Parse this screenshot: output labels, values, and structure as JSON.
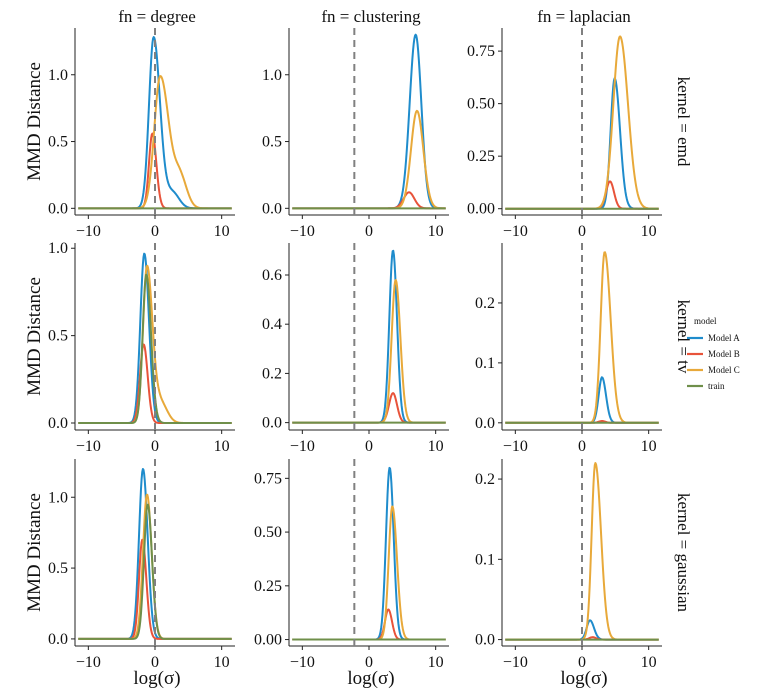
{
  "chart_data": {
    "type": "line",
    "facet_columns": [
      "fn = degree",
      "fn = clustering",
      "fn = laplacian"
    ],
    "facet_rows": [
      "kernel = emd",
      "kernel = tv",
      "kernel = gaussian"
    ],
    "xlabel": "log(σ)",
    "ylabel": "MMD Distance",
    "xlim": [
      -12,
      12
    ],
    "xticks": [
      -10,
      0,
      10
    ],
    "xtick_labels": [
      "−10",
      "0",
      "10"
    ],
    "legend": {
      "title": "model",
      "position": "right",
      "entries": [
        {
          "name": "Model A",
          "color": "#1f8ccc"
        },
        {
          "name": "Model B",
          "color": "#e8533a"
        },
        {
          "name": "Model C",
          "color": "#e8a93a"
        },
        {
          "name": "train",
          "color": "#6f8f4a"
        }
      ]
    },
    "panels": [
      {
        "row": 0,
        "col": 0,
        "vline": 0,
        "ylim": [
          -0.05,
          1.35
        ],
        "yticks": [
          "0.0",
          "0.5",
          "1.0"
        ],
        "ytick_values": [
          0,
          0.5,
          1.0
        ],
        "series": [
          {
            "name": "Model A",
            "peaks": [
              {
                "center": -0.2,
                "height": 1.28,
                "wl": 0.7,
                "wr": 0.95
              },
              {
                "center": 2.6,
                "height": 0.12,
                "wl": 1.0,
                "wr": 1.0
              }
            ]
          },
          {
            "name": "Model B",
            "peaks": [
              {
                "center": -0.4,
                "height": 0.56,
                "wl": 0.5,
                "wr": 0.6
              }
            ]
          },
          {
            "name": "Model C",
            "peaks": [
              {
                "center": 0.8,
                "height": 0.99,
                "wl": 0.9,
                "wr": 1.3
              },
              {
                "center": 3.8,
                "height": 0.22,
                "wl": 0.9,
                "wr": 1.0
              }
            ]
          },
          {
            "name": "train",
            "peaks": [
              {
                "center": 0,
                "height": 0.0,
                "wl": 1,
                "wr": 1
              }
            ]
          }
        ]
      },
      {
        "row": 0,
        "col": 1,
        "vline": -2.2,
        "ylim": [
          -0.05,
          1.35
        ],
        "yticks": [
          "0.0",
          "0.5",
          "1.0"
        ],
        "ytick_values": [
          0,
          0.5,
          1.0
        ],
        "series": [
          {
            "name": "Model A",
            "peaks": [
              {
                "center": 7.0,
                "height": 1.3,
                "wl": 0.9,
                "wr": 0.85
              }
            ]
          },
          {
            "name": "Model B",
            "peaks": [
              {
                "center": 6.0,
                "height": 0.12,
                "wl": 0.8,
                "wr": 0.8
              }
            ]
          },
          {
            "name": "Model C",
            "peaks": [
              {
                "center": 7.2,
                "height": 0.73,
                "wl": 0.9,
                "wr": 0.95
              }
            ]
          },
          {
            "name": "train",
            "peaks": [
              {
                "center": 0,
                "height": 0.0,
                "wl": 1,
                "wr": 1
              }
            ]
          }
        ]
      },
      {
        "row": 0,
        "col": 2,
        "vline": 0,
        "ylim": [
          -0.03,
          0.86
        ],
        "yticks": [
          "0.00",
          "0.25",
          "0.50",
          "0.75"
        ],
        "ytick_values": [
          0,
          0.25,
          0.5,
          0.75
        ],
        "series": [
          {
            "name": "Model A",
            "peaks": [
              {
                "center": 4.9,
                "height": 0.62,
                "wl": 0.6,
                "wr": 0.8
              }
            ]
          },
          {
            "name": "Model B",
            "peaks": [
              {
                "center": 4.2,
                "height": 0.13,
                "wl": 0.6,
                "wr": 0.6
              }
            ]
          },
          {
            "name": "Model C",
            "peaks": [
              {
                "center": 5.7,
                "height": 0.82,
                "wl": 1.0,
                "wr": 1.2
              }
            ]
          },
          {
            "name": "train",
            "peaks": [
              {
                "center": 0,
                "height": 0.0,
                "wl": 1,
                "wr": 1
              }
            ]
          }
        ]
      },
      {
        "row": 1,
        "col": 0,
        "vline": 0,
        "ylim": [
          -0.04,
          1.03
        ],
        "yticks": [
          "0.0",
          "0.5",
          "1.0"
        ],
        "ytick_values": [
          0,
          0.5,
          1.0
        ],
        "series": [
          {
            "name": "Model A",
            "peaks": [
              {
                "center": -1.6,
                "height": 0.97,
                "wl": 0.6,
                "wr": 0.7
              }
            ]
          },
          {
            "name": "Model B",
            "peaks": [
              {
                "center": -1.7,
                "height": 0.45,
                "wl": 0.55,
                "wr": 0.6
              }
            ]
          },
          {
            "name": "Model C",
            "peaks": [
              {
                "center": -1.2,
                "height": 0.89,
                "wl": 0.6,
                "wr": 0.8
              },
              {
                "center": 0.8,
                "height": 0.12,
                "wl": 0.9,
                "wr": 1.0
              }
            ]
          },
          {
            "name": "train",
            "peaks": [
              {
                "center": -1.3,
                "height": 0.85,
                "wl": 0.55,
                "wr": 0.7
              }
            ]
          }
        ]
      },
      {
        "row": 1,
        "col": 1,
        "vline": -2.2,
        "ylim": [
          -0.03,
          0.73
        ],
        "yticks": [
          "0.0",
          "0.2",
          "0.4",
          "0.6"
        ],
        "ytick_values": [
          0,
          0.2,
          0.4,
          0.6
        ],
        "series": [
          {
            "name": "Model A",
            "peaks": [
              {
                "center": 3.6,
                "height": 0.7,
                "wl": 0.55,
                "wr": 0.6
              }
            ]
          },
          {
            "name": "Model B",
            "peaks": [
              {
                "center": 3.6,
                "height": 0.12,
                "wl": 0.6,
                "wr": 0.6
              }
            ]
          },
          {
            "name": "Model C",
            "peaks": [
              {
                "center": 4.0,
                "height": 0.58,
                "wl": 0.6,
                "wr": 0.7
              }
            ]
          },
          {
            "name": "train",
            "peaks": [
              {
                "center": 0,
                "height": 0.0,
                "wl": 1,
                "wr": 1
              }
            ]
          }
        ]
      },
      {
        "row": 1,
        "col": 2,
        "vline": 0,
        "ylim": [
          -0.012,
          0.3
        ],
        "yticks": [
          "0.0",
          "0.1",
          "0.2"
        ],
        "ytick_values": [
          0,
          0.1,
          0.2
        ],
        "series": [
          {
            "name": "Model A",
            "peaks": [
              {
                "center": 3.0,
                "height": 0.076,
                "wl": 0.5,
                "wr": 0.6
              }
            ]
          },
          {
            "name": "Model B",
            "peaks": [
              {
                "center": 3.0,
                "height": 0.003,
                "wl": 0.5,
                "wr": 0.5
              }
            ]
          },
          {
            "name": "Model C",
            "peaks": [
              {
                "center": 3.4,
                "height": 0.285,
                "wl": 0.6,
                "wr": 0.9
              }
            ]
          },
          {
            "name": "train",
            "peaks": [
              {
                "center": 0,
                "height": 0.0,
                "wl": 1,
                "wr": 1
              }
            ]
          }
        ]
      },
      {
        "row": 2,
        "col": 0,
        "vline": 0,
        "ylim": [
          -0.05,
          1.27
        ],
        "yticks": [
          "0.0",
          "0.5",
          "1.0"
        ],
        "ytick_values": [
          0,
          0.5,
          1.0
        ],
        "series": [
          {
            "name": "Model A",
            "peaks": [
              {
                "center": -1.8,
                "height": 1.2,
                "wl": 0.6,
                "wr": 0.7
              }
            ]
          },
          {
            "name": "Model B",
            "peaks": [
              {
                "center": -1.9,
                "height": 0.7,
                "wl": 0.5,
                "wr": 0.6
              }
            ]
          },
          {
            "name": "Model C",
            "peaks": [
              {
                "center": -1.2,
                "height": 1.02,
                "wl": 0.6,
                "wr": 0.7
              }
            ]
          },
          {
            "name": "train",
            "peaks": [
              {
                "center": -1.1,
                "height": 0.95,
                "wl": 0.55,
                "wr": 0.65
              }
            ]
          }
        ]
      },
      {
        "row": 2,
        "col": 1,
        "vline": -2.2,
        "ylim": [
          -0.03,
          0.84
        ],
        "yticks": [
          "0.00",
          "0.25",
          "0.50",
          "0.75"
        ],
        "ytick_values": [
          0,
          0.25,
          0.5,
          0.75
        ],
        "series": [
          {
            "name": "Model A",
            "peaks": [
              {
                "center": 3.1,
                "height": 0.8,
                "wl": 0.55,
                "wr": 0.6
              }
            ]
          },
          {
            "name": "Model B",
            "peaks": [
              {
                "center": 2.9,
                "height": 0.14,
                "wl": 0.5,
                "wr": 0.55
              }
            ]
          },
          {
            "name": "Model C",
            "peaks": [
              {
                "center": 3.5,
                "height": 0.62,
                "wl": 0.55,
                "wr": 0.7
              }
            ]
          },
          {
            "name": "train",
            "peaks": [
              {
                "center": 0,
                "height": 0.0,
                "wl": 1,
                "wr": 1
              }
            ]
          }
        ]
      },
      {
        "row": 2,
        "col": 2,
        "vline": 0,
        "ylim": [
          -0.008,
          0.225
        ],
        "yticks": [
          "0.0",
          "0.1",
          "0.2"
        ],
        "ytick_values": [
          0,
          0.1,
          0.2
        ],
        "series": [
          {
            "name": "Model A",
            "peaks": [
              {
                "center": 1.2,
                "height": 0.024,
                "wl": 0.5,
                "wr": 0.6
              }
            ]
          },
          {
            "name": "Model B",
            "peaks": [
              {
                "center": 1.6,
                "height": 0.003,
                "wl": 0.5,
                "wr": 0.5
              }
            ]
          },
          {
            "name": "Model C",
            "peaks": [
              {
                "center": 2.0,
                "height": 0.22,
                "wl": 0.55,
                "wr": 0.85
              }
            ]
          },
          {
            "name": "train",
            "peaks": [
              {
                "center": 0,
                "height": 0.0,
                "wl": 1,
                "wr": 1
              }
            ]
          }
        ]
      }
    ]
  }
}
